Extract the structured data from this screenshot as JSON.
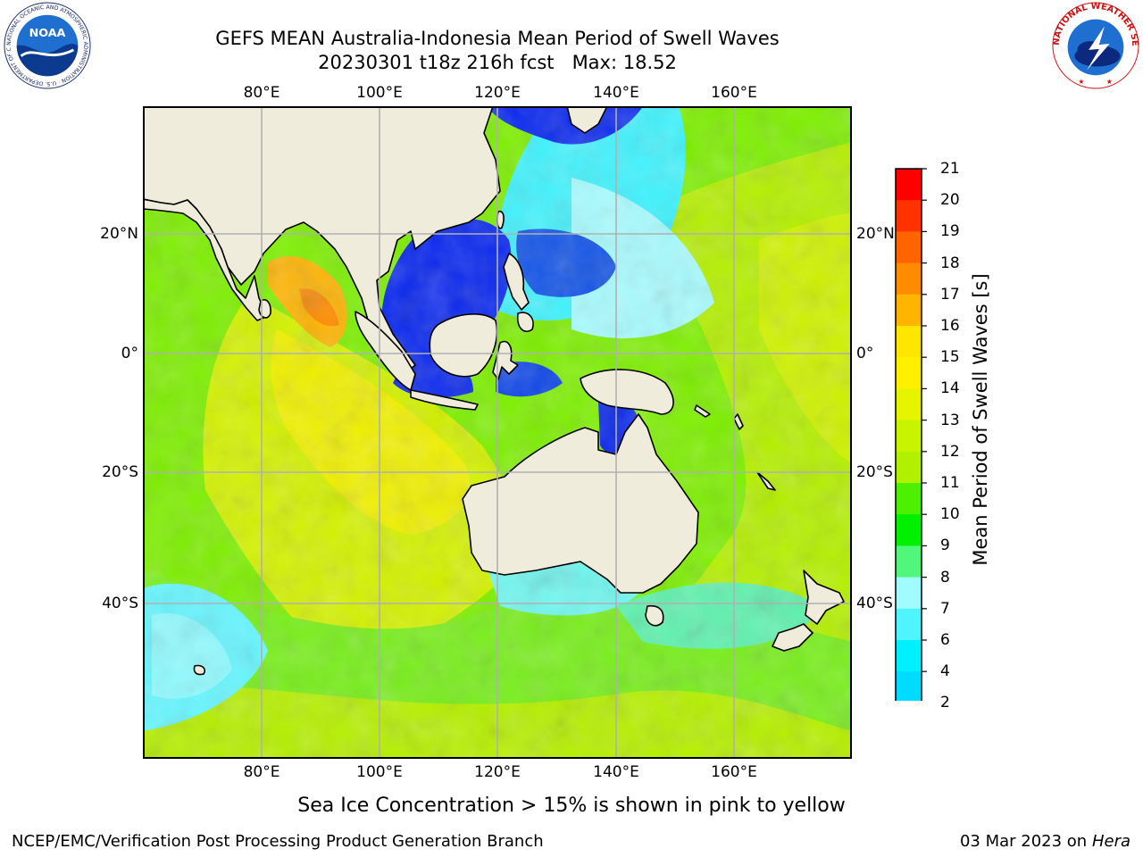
{
  "title": {
    "line1": "GEFS MEAN Australia-Indonesia Mean Period of Swell Waves",
    "line2": "20230301 t18z 216h fcst   Max: 18.52"
  },
  "logos": {
    "left": {
      "text": "NOAA",
      "ring": "NATIONAL OCEANIC AND ATMOSPHERIC ADMINISTRATION · U.S. DEPARTMENT OF COMMERCE"
    },
    "right": {
      "ring": "NATIONAL WEATHER SERVICE"
    }
  },
  "map": {
    "projection": "lat-lon",
    "lon_range": [
      60,
      180
    ],
    "lat_range": [
      -68,
      41
    ],
    "gridlines": true,
    "lon_labels": [
      "80°E",
      "100°E",
      "120°E",
      "140°E",
      "160°E"
    ],
    "lat_labels": [
      "20°N",
      "0°",
      "20°S",
      "40°S"
    ],
    "land_color": "#efecdc",
    "field_description": "Mean period of swell waves over ocean"
  },
  "colorbar": {
    "label": "Mean Period of Swell Waves [s]",
    "ticks": [
      "2",
      "4",
      "6",
      "7",
      "8",
      "9",
      "10",
      "11",
      "12",
      "13",
      "14",
      "15",
      "16",
      "17",
      "18",
      "19",
      "20",
      "21"
    ],
    "colors": [
      "#0072ff",
      "#00dcff",
      "#00f0ff",
      "#50f4ff",
      "#a0fcff",
      "#50f77b",
      "#00f000",
      "#4cf000",
      "#b0f000",
      "#c8f400",
      "#e6f400",
      "#fff000",
      "#ffe600",
      "#ffb400",
      "#ff8c00",
      "#ff6400",
      "#ff3200",
      "#ff0000"
    ],
    "extend_min_color": "#0000ff"
  },
  "note": "Sea Ice Concentration > 15% is shown in pink to yellow",
  "footer": {
    "left": "NCEP/EMC/Verification Post Processing Product Generation Branch",
    "date": "03 Mar 2023 on",
    "machine": "Hera"
  }
}
